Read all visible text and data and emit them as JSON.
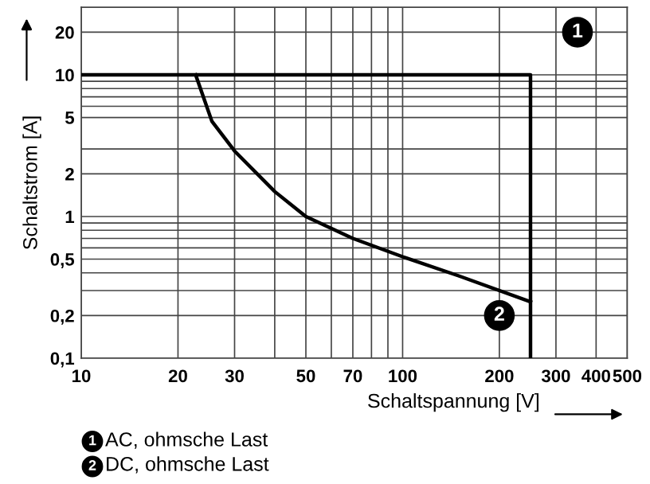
{
  "chart_data": {
    "type": "line",
    "xlabel": "Schaltspannung [V]",
    "ylabel": "Schaltstrom [A]",
    "log": "xy",
    "series": [
      {
        "name": "AC, ohmsche Last",
        "color": "#000000",
        "x": [
          10,
          250,
          250
        ],
        "values": [
          10,
          10,
          0.1
        ]
      },
      {
        "name": "DC, ohmsche Last",
        "color": "#000000",
        "x": [
          22.7,
          25.5,
          30,
          40,
          50,
          70,
          100,
          150,
          250
        ],
        "values": [
          10,
          4.7,
          2.9,
          1.5,
          1.0,
          0.7,
          0.52,
          0.38,
          0.25
        ]
      }
    ],
    "xlim": [
      10,
      500
    ],
    "ylim": [
      0.1,
      30
    ],
    "xticks": [
      10,
      20,
      30,
      {
        "value": 40,
        "label": null
      },
      50,
      {
        "value": 60,
        "label": null
      },
      70,
      {
        "value": 80,
        "label": null
      },
      {
        "value": 90,
        "label": null
      },
      100,
      200,
      300,
      400,
      500
    ],
    "yticks": [
      {
        "value": 0.1,
        "label": "0,1"
      },
      {
        "value": 0.2,
        "label": "0,2"
      },
      {
        "value": 0.3,
        "label": null
      },
      {
        "value": 0.4,
        "label": null
      },
      {
        "value": 0.5,
        "label": "0,5"
      },
      {
        "value": 0.6,
        "label": null
      },
      {
        "value": 0.7,
        "label": null
      },
      {
        "value": 0.8,
        "label": null
      },
      {
        "value": 0.9,
        "label": null
      },
      1,
      2,
      {
        "value": 3,
        "label": null
      },
      5,
      {
        "value": 6,
        "label": null
      },
      {
        "value": 7,
        "label": null
      },
      {
        "value": 8,
        "label": null
      },
      {
        "value": 9,
        "label": null
      },
      10,
      20
    ],
    "annotations": [
      {
        "text": "1",
        "x": 350,
        "y": 20
      },
      {
        "text": "2",
        "x": 200,
        "y": 0.2
      }
    ],
    "grid": true,
    "legend": "bottom left",
    "marker": "none",
    "line_style": "solid"
  }
}
